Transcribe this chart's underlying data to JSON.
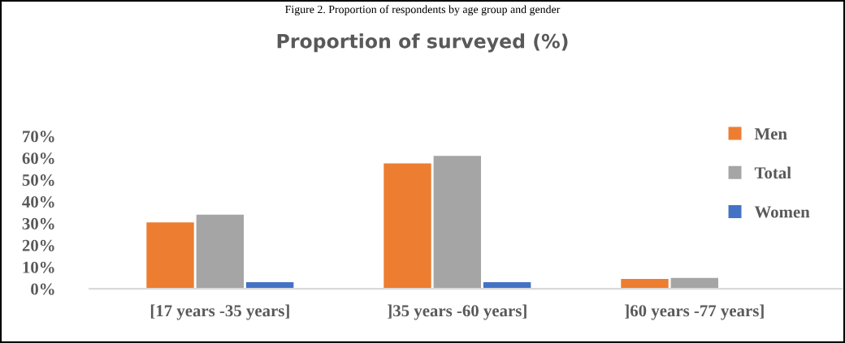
{
  "chart_data": {
    "type": "bar",
    "title": "Proportion of surveyed (%)",
    "annotations": [
      "Figure 2. Proportion of respondents by age group and gender"
    ],
    "categories": [
      "[17 years -35 years]",
      "]35 years -60 years]",
      "]60 years -77 years]"
    ],
    "series": [
      {
        "name": "Men",
        "color": "#ed7d31",
        "values": [
          30.5,
          57.5,
          4.5
        ]
      },
      {
        "name": "Total",
        "color": "#a5a5a5",
        "values": [
          34,
          61,
          5
        ]
      },
      {
        "name": "Women",
        "color": "#4472c4",
        "values": [
          3,
          3,
          0
        ]
      }
    ],
    "ylim": [
      0,
      70
    ],
    "yticks": [
      {
        "value": 0,
        "label": "0%"
      },
      {
        "value": 10,
        "label": "10%"
      },
      {
        "value": 20,
        "label": "20%"
      },
      {
        "value": 30,
        "label": "30%"
      },
      {
        "value": 40,
        "label": "40%"
      },
      {
        "value": 50,
        "label": "50%"
      },
      {
        "value": 60,
        "label": "60%"
      },
      {
        "value": 70,
        "label": "70%"
      }
    ],
    "grid": false,
    "legend": "right"
  }
}
